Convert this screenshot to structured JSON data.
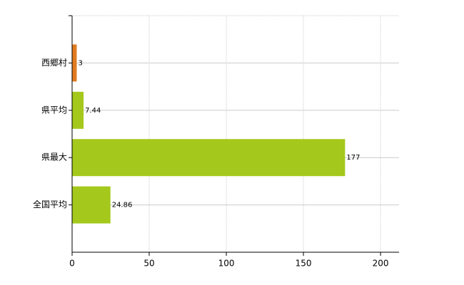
{
  "chart_data": {
    "type": "bar",
    "orientation": "horizontal",
    "categories": [
      "西郷村",
      "県平均",
      "県最大",
      "全国平均"
    ],
    "values": [
      3,
      7.44,
      177,
      24.86
    ],
    "colors": [
      "#e07b1f",
      "#a5c81c",
      "#a5c81c",
      "#a5c81c"
    ],
    "xlim": [
      0,
      212
    ],
    "xticks": [
      0,
      50,
      100,
      150,
      200
    ],
    "grid": true
  }
}
